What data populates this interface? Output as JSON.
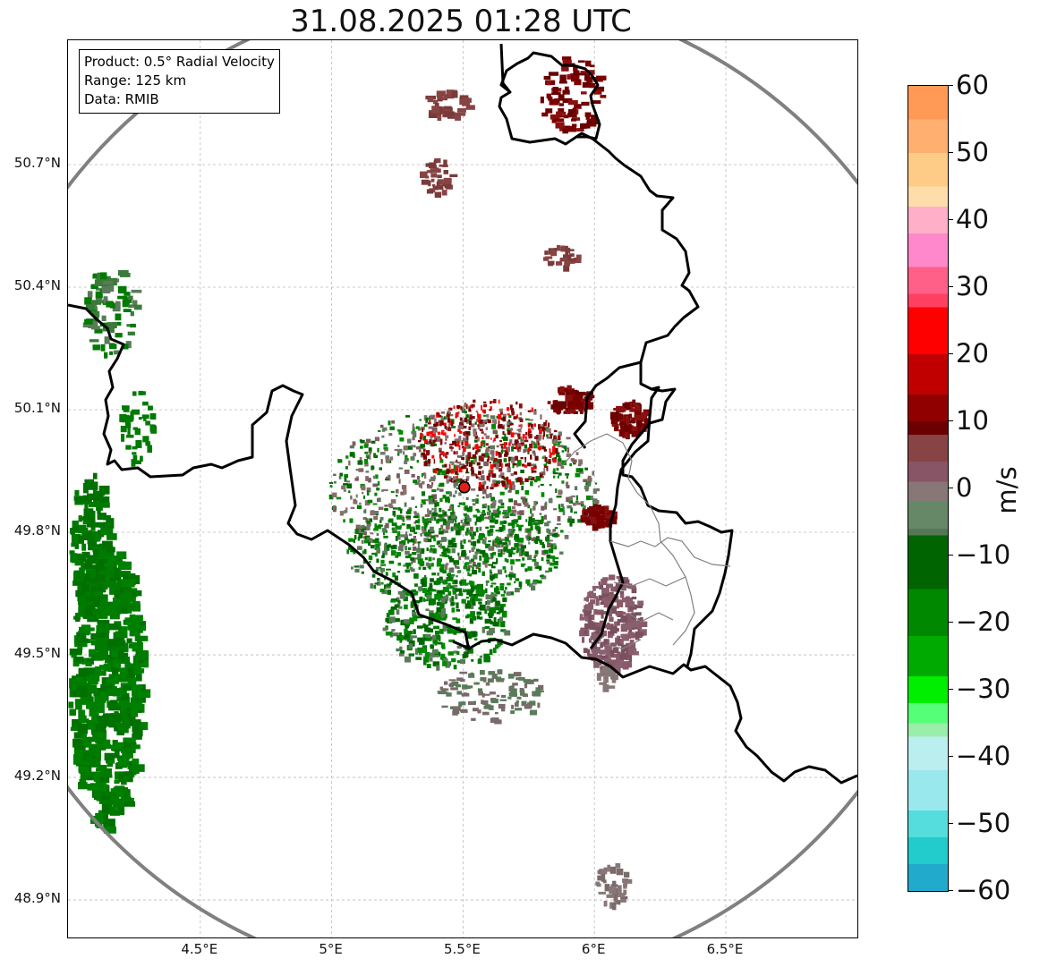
{
  "title": "31.08.2025 01:28 UTC",
  "info": {
    "product": "Product: 0.5° Radial Velocity",
    "range": "Range: 125 km",
    "source": "Data: RMIB"
  },
  "axes": {
    "lat_ticks": [
      {
        "label": "50.7°N",
        "value": 50.7
      },
      {
        "label": "50.4°N",
        "value": 50.4
      },
      {
        "label": "50.1°N",
        "value": 50.1
      },
      {
        "label": "49.8°N",
        "value": 49.8
      },
      {
        "label": "49.5°N",
        "value": 49.5
      },
      {
        "label": "49.2°N",
        "value": 49.2
      },
      {
        "label": "48.9°N",
        "value": 48.9
      }
    ],
    "lon_ticks": [
      {
        "label": "4.5°E",
        "value": 4.5
      },
      {
        "label": "5°E",
        "value": 5.0
      },
      {
        "label": "5.5°E",
        "value": 5.5
      },
      {
        "label": "6°E",
        "value": 6.0
      },
      {
        "label": "6.5°E",
        "value": 6.5
      }
    ],
    "lat_range": [
      48.8,
      51.0
    ],
    "lon_range": [
      4.0,
      7.0
    ],
    "grid": true
  },
  "radar_site": {
    "lat": 49.91,
    "lon": 5.505,
    "color": "#e0201b"
  },
  "colorbar": {
    "unit": "m/s",
    "min": -60,
    "max": 60,
    "tick_labels": [
      "60",
      "50",
      "40",
      "30",
      "20",
      "10",
      "0",
      "−10",
      "−20",
      "−30",
      "−40",
      "−50",
      "−60"
    ],
    "stops": [
      {
        "v": 60,
        "c": "#ff9955"
      },
      {
        "v": 55,
        "c": "#ffb070"
      },
      {
        "v": 50,
        "c": "#ffcc88"
      },
      {
        "v": 45,
        "c": "#ffddaa"
      },
      {
        "v": 42,
        "c": "#ffb0c8"
      },
      {
        "v": 38,
        "c": "#ff88cc"
      },
      {
        "v": 33,
        "c": "#ff6088"
      },
      {
        "v": 29,
        "c": "#ff4060"
      },
      {
        "v": 27,
        "c": "#ff0000"
      },
      {
        "v": 20,
        "c": "#c00000"
      },
      {
        "v": 14,
        "c": "#900000"
      },
      {
        "v": 10,
        "c": "#6a0000"
      },
      {
        "v": 8,
        "c": "#884444"
      },
      {
        "v": 4,
        "c": "#885566"
      },
      {
        "v": 1,
        "c": "#887777"
      },
      {
        "v": -2,
        "c": "#668866"
      },
      {
        "v": -6,
        "c": "#557755"
      },
      {
        "v": -7,
        "c": "#006400"
      },
      {
        "v": -15,
        "c": "#008800"
      },
      {
        "v": -22,
        "c": "#00aa00"
      },
      {
        "v": -28,
        "c": "#00ee00"
      },
      {
        "v": -32,
        "c": "#55ff77"
      },
      {
        "v": -35,
        "c": "#99eeaa"
      },
      {
        "v": -37,
        "c": "#bbeeee"
      },
      {
        "v": -42,
        "c": "#99e8ee"
      },
      {
        "v": -48,
        "c": "#55dddd"
      },
      {
        "v": -52,
        "c": "#22cccc"
      },
      {
        "v": -56,
        "c": "#22aacc"
      },
      {
        "v": -60,
        "c": "#1f77b4"
      }
    ]
  },
  "palette": {
    "inbound_green": "#007a00",
    "outbound_red": "#7a0000",
    "near_zero_grey": "#8a6f6f",
    "range_ring": "#808080",
    "border": "#000000"
  }
}
